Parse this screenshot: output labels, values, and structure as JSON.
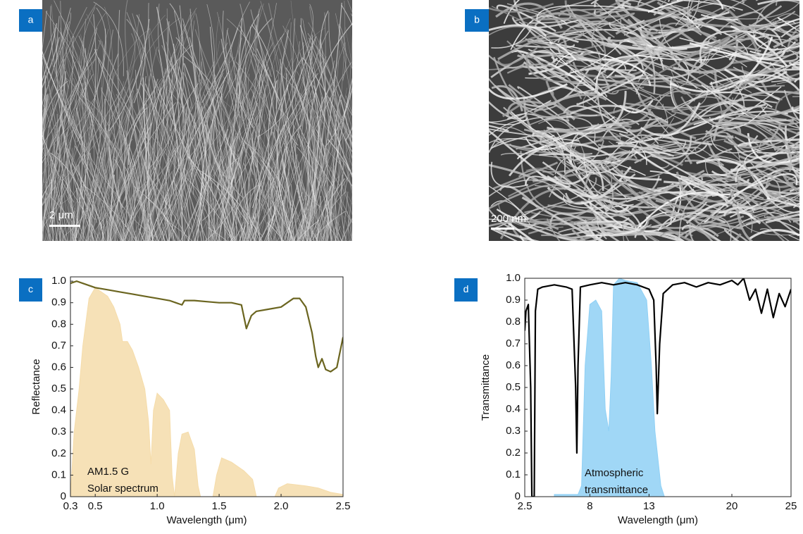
{
  "panels": [
    {
      "label": "a",
      "scale_bar": "2 μm"
    },
    {
      "label": "b",
      "scale_bar": "200 nm"
    }
  ],
  "chart_data": [
    {
      "type": "line",
      "panel_label": "c",
      "y_label": "Reflectance",
      "x_label": "Wavelength (μm)",
      "xlim": [
        0.3,
        2.5
      ],
      "ylim": [
        0,
        1.02
      ],
      "xticks": [
        0.3,
        0.5,
        {
          "value": 1,
          "label": "1.0"
        },
        1.5,
        {
          "value": 2,
          "label": "2.0"
        },
        2.5
      ],
      "yticks": [
        0,
        0.1,
        0.2,
        0.3,
        0.4,
        0.5,
        0.6,
        0.7,
        0.8,
        0.9,
        {
          "value": 1,
          "label": "1.0"
        }
      ],
      "grid": false,
      "annotations": [
        "AM1.5 G",
        "Solar spectrum"
      ],
      "series": [
        {
          "color": "#f5dcaa",
          "fill": true,
          "x": [
            0.3,
            0.33,
            0.37,
            0.4,
            0.45,
            0.5,
            0.55,
            0.6,
            0.65,
            0.7,
            0.72,
            0.76,
            0.8,
            0.85,
            0.9,
            0.93,
            0.95,
            0.97,
            1.0,
            1.05,
            1.1,
            1.12,
            1.14,
            1.17,
            1.2,
            1.25,
            1.3,
            1.33,
            1.35,
            1.45,
            1.48,
            1.52,
            1.6,
            1.7,
            1.77,
            1.8,
            1.95,
            1.98,
            2.05,
            2.2,
            2.3,
            2.4,
            2.5
          ],
          "values": [
            0,
            0.3,
            0.5,
            0.7,
            0.92,
            0.97,
            0.95,
            0.93,
            0.88,
            0.8,
            0.72,
            0.72,
            0.68,
            0.6,
            0.5,
            0.35,
            0.15,
            0.4,
            0.48,
            0.45,
            0.4,
            0.1,
            0,
            0.2,
            0.29,
            0.3,
            0.22,
            0.05,
            0,
            0,
            0.1,
            0.18,
            0.16,
            0.12,
            0.08,
            0,
            0,
            0.04,
            0.06,
            0.05,
            0.04,
            0.02,
            0.01
          ]
        },
        {
          "color": "#6b6520",
          "fill": false,
          "x": [
            0.3,
            0.35,
            0.4,
            0.5,
            0.6,
            0.7,
            0.8,
            0.9,
            1.0,
            1.1,
            1.15,
            1.2,
            1.22,
            1.3,
            1.4,
            1.5,
            1.6,
            1.68,
            1.72,
            1.76,
            1.8,
            1.9,
            2.0,
            2.1,
            2.15,
            2.2,
            2.25,
            2.28,
            2.3,
            2.33,
            2.36,
            2.4,
            2.45,
            2.5
          ],
          "values": [
            0.99,
            1.0,
            0.99,
            0.97,
            0.96,
            0.95,
            0.94,
            0.93,
            0.92,
            0.91,
            0.9,
            0.89,
            0.91,
            0.91,
            0.905,
            0.9,
            0.9,
            0.89,
            0.78,
            0.84,
            0.86,
            0.87,
            0.88,
            0.92,
            0.92,
            0.88,
            0.76,
            0.65,
            0.6,
            0.64,
            0.59,
            0.58,
            0.6,
            0.74
          ]
        }
      ]
    },
    {
      "type": "line",
      "panel_label": "d",
      "y_label": "Transmittance",
      "x_label": "Wavelength (μm)",
      "xlim": [
        2.5,
        25
      ],
      "ylim": [
        0,
        1
      ],
      "xticks": [
        2.5,
        8,
        13,
        20,
        25
      ],
      "yticks": [
        0,
        0.1,
        0.2,
        0.3,
        0.4,
        0.5,
        0.6,
        0.7,
        0.8,
        0.9,
        {
          "value": 1,
          "label": "1.0"
        }
      ],
      "grid": false,
      "annotations": [
        "Atmospheric",
        "transmittance"
      ],
      "series": [
        {
          "color": "#8fd0f5",
          "fill": true,
          "x": [
            5,
            6,
            7,
            7.3,
            7.6,
            8,
            8.5,
            9,
            9.3,
            9.6,
            9.8,
            10,
            10.5,
            11,
            12,
            12.8,
            13.2,
            13.5,
            14,
            14.3
          ],
          "values": [
            0.01,
            0.01,
            0.01,
            0.05,
            0.6,
            0.88,
            0.9,
            0.85,
            0.4,
            0.3,
            0.55,
            0.97,
            1.0,
            0.99,
            0.98,
            0.9,
            0.6,
            0.3,
            0.05,
            0
          ]
        },
        {
          "color": "#000000",
          "fill": false,
          "x": [
            2.5,
            2.6,
            2.8,
            3.0,
            3.1,
            3.3,
            3.4,
            3.6,
            4,
            5,
            6,
            6.5,
            6.8,
            6.9,
            7.0,
            7.2,
            8,
            9,
            10,
            11,
            12,
            13,
            13.4,
            13.6,
            13.7,
            13.9,
            14.2,
            15,
            16,
            17,
            18,
            19,
            20,
            20.5,
            21,
            21.5,
            22,
            22.5,
            23,
            23.5,
            24,
            24.5,
            25
          ],
          "values": [
            0.76,
            0.85,
            0.88,
            0.5,
            0,
            0,
            0.85,
            0.95,
            0.96,
            0.97,
            0.96,
            0.95,
            0.5,
            0.2,
            0.6,
            0.96,
            0.97,
            0.98,
            0.97,
            0.98,
            0.97,
            0.95,
            0.9,
            0.6,
            0.38,
            0.7,
            0.93,
            0.97,
            0.98,
            0.96,
            0.98,
            0.97,
            0.99,
            0.97,
            1.0,
            0.9,
            0.95,
            0.84,
            0.95,
            0.82,
            0.93,
            0.87,
            0.95
          ]
        }
      ]
    }
  ]
}
